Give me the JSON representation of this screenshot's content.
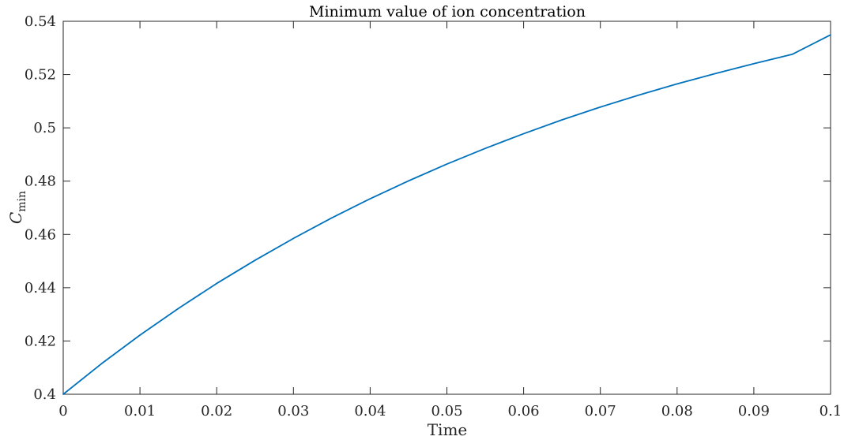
{
  "chart_data": {
    "type": "line",
    "title": "Minimum value of ion concentration",
    "xlabel": "Time",
    "ylabel": "C",
    "ylabel_subscript": "min",
    "xlim": [
      0,
      0.1
    ],
    "ylim": [
      0.4,
      0.54
    ],
    "x_ticks": [
      0,
      0.01,
      0.02,
      0.03,
      0.04,
      0.05,
      0.06,
      0.07,
      0.08,
      0.09,
      0.1
    ],
    "x_tick_labels": [
      "0",
      "0.01",
      "0.02",
      "0.03",
      "0.04",
      "0.05",
      "0.06",
      "0.07",
      "0.08",
      "0.09",
      "0.1"
    ],
    "y_ticks": [
      0.4,
      0.42,
      0.44,
      0.46,
      0.48,
      0.5,
      0.52,
      0.54
    ],
    "y_tick_labels": [
      "0.4",
      "0.42",
      "0.44",
      "0.46",
      "0.48",
      "0.5",
      "0.52",
      "0.54"
    ],
    "grid": false,
    "series": [
      {
        "color": "#0072BD",
        "x": [
          0,
          0.005,
          0.01,
          0.015,
          0.02,
          0.025,
          0.03,
          0.035,
          0.04,
          0.045,
          0.05,
          0.055,
          0.06,
          0.065,
          0.07,
          0.075,
          0.08,
          0.085,
          0.09,
          0.095,
          0.1
        ],
        "y": [
          0.4,
          0.4115,
          0.4222,
          0.4322,
          0.4416,
          0.4503,
          0.4585,
          0.4662,
          0.4734,
          0.4801,
          0.4864,
          0.4923,
          0.4978,
          0.503,
          0.5078,
          0.5123,
          0.5165,
          0.5204,
          0.5241,
          0.5276,
          0.5349
        ]
      }
    ]
  }
}
